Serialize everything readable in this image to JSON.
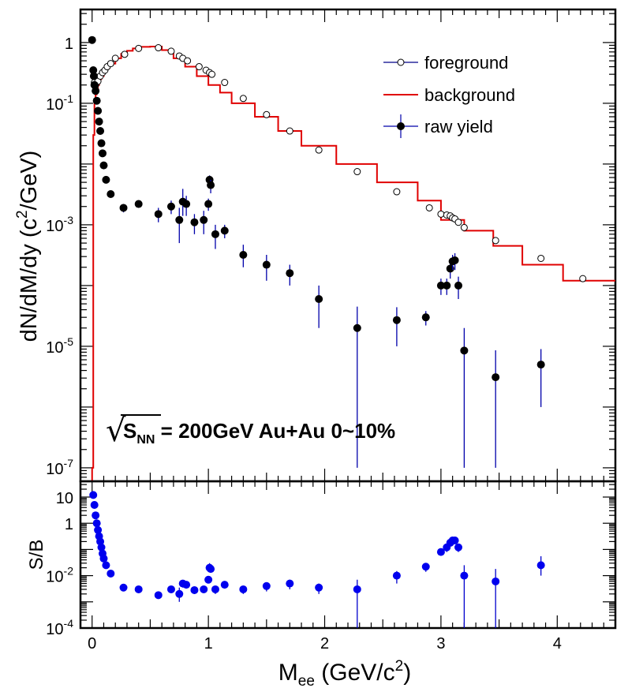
{
  "chart_data": [
    {
      "type": "scatter",
      "ylabel": "dN/dM/dy (c",
      "ylabel_sup": "2",
      "ylabel_end": "/GeV)",
      "yscale": "log",
      "ylim": [
        6e-08,
        3.5
      ],
      "xlim": [
        -0.1,
        4.5
      ],
      "yticks": [
        {
          "value": 1,
          "label": "1"
        },
        {
          "value": 0.1,
          "label": "10",
          "sup": "-1"
        },
        {
          "value": 0.001,
          "label": "10",
          "sup": "-3"
        },
        {
          "value": 1e-05,
          "label": "10",
          "sup": "-5"
        },
        {
          "value": 1e-07,
          "label": "10",
          "sup": "-7"
        }
      ],
      "legend": {
        "position": "top-right",
        "entries": [
          {
            "label": "foreground",
            "marker": "open-circle",
            "color": "#00008b"
          },
          {
            "label": "background",
            "marker": "line",
            "color": "#e00000"
          },
          {
            "label": "raw yield",
            "marker": "filled-circle-errorbar",
            "color": "#000000"
          }
        ]
      },
      "annotation": {
        "sqrt_symbol": "√",
        "s_letter": "S",
        "s_sub": "NN",
        "text": " = 200GeV Au+Au 0~10%"
      },
      "series": [
        {
          "name": "background",
          "kind": "step",
          "color": "#e00000",
          "edges": [
            0,
            0.01,
            0.02,
            0.03,
            0.04,
            0.05,
            0.06,
            0.07,
            0.08,
            0.1,
            0.12,
            0.15,
            0.2,
            0.25,
            0.3,
            0.35,
            0.4,
            0.5,
            0.6,
            0.7,
            0.8,
            0.9,
            1.0,
            1.1,
            1.2,
            1.4,
            1.6,
            1.8,
            2.1,
            2.45,
            2.8,
            3.0,
            3.2,
            3.45,
            3.7,
            4.05,
            4.5
          ],
          "values": [
            1e-07,
            0.03,
            0.1,
            0.14,
            0.17,
            0.2,
            0.23,
            0.25,
            0.28,
            0.33,
            0.38,
            0.45,
            0.55,
            0.65,
            0.73,
            0.8,
            0.85,
            0.86,
            0.75,
            0.55,
            0.4,
            0.28,
            0.2,
            0.15,
            0.1,
            0.06,
            0.035,
            0.02,
            0.01,
            0.005,
            0.0025,
            0.0012,
            0.0008,
            0.00045,
            0.00022,
            0.00012
          ]
        },
        {
          "name": "foreground",
          "kind": "open-markers",
          "color": "#000000",
          "x": [
            0.02,
            0.03,
            0.05,
            0.07,
            0.09,
            0.11,
            0.13,
            0.16,
            0.2,
            0.28,
            0.4,
            0.57,
            0.68,
            0.75,
            0.78,
            0.82,
            0.92,
            0.98,
            1.01,
            1.03,
            1.14,
            1.3,
            1.5,
            1.7,
            1.95,
            2.28,
            2.62,
            2.9,
            3.0,
            3.05,
            3.08,
            3.1,
            3.12,
            3.15,
            3.2,
            3.47,
            3.86,
            4.22
          ],
          "y": [
            0.22,
            0.2,
            0.23,
            0.28,
            0.32,
            0.35,
            0.4,
            0.45,
            0.55,
            0.64,
            0.8,
            0.82,
            0.72,
            0.6,
            0.55,
            0.5,
            0.4,
            0.35,
            0.32,
            0.3,
            0.22,
            0.12,
            0.065,
            0.035,
            0.017,
            0.0075,
            0.0035,
            0.0019,
            0.0015,
            0.00145,
            0.0014,
            0.0013,
            0.00125,
            0.0011,
            0.0009,
            0.00055,
            0.00028,
            0.00013
          ]
        },
        {
          "name": "raw yield",
          "kind": "filled-errorbar",
          "color": "#000000",
          "errcolor": "#0000aa",
          "x": [
            0.0,
            0.01,
            0.015,
            0.02,
            0.03,
            0.04,
            0.05,
            0.06,
            0.07,
            0.08,
            0.09,
            0.1,
            0.12,
            0.16,
            0.27,
            0.4,
            0.57,
            0.68,
            0.75,
            0.78,
            0.81,
            0.88,
            0.96,
            1.0,
            1.01,
            1.02,
            1.06,
            1.14,
            1.3,
            1.5,
            1.7,
            1.95,
            2.28,
            2.62,
            2.87,
            3.0,
            3.05,
            3.08,
            3.1,
            3.12,
            3.15,
            3.2,
            3.47,
            3.86
          ],
          "y": [
            1.1,
            0.35,
            0.28,
            0.2,
            0.16,
            0.11,
            0.075,
            0.05,
            0.035,
            0.022,
            0.015,
            0.0095,
            0.0055,
            0.0032,
            0.0019,
            0.0022,
            0.0015,
            0.002,
            0.0012,
            0.0024,
            0.0022,
            0.0011,
            0.0012,
            0.0022,
            0.0055,
            0.0045,
            0.0007,
            0.0008,
            0.00032,
            0.00022,
            0.00016,
            6e-05,
            2e-05,
            2.7e-05,
            3e-05,
            0.0001,
            0.0001,
            0.00019,
            0.00025,
            0.00026,
            0.0001,
            8.5e-06,
            3.1e-06,
            5e-06
          ],
          "yerr_low": [
            0.04,
            0.02,
            0.02,
            0.01,
            0.01,
            0.005,
            0.004,
            0.003,
            0.002,
            0.001,
            0.001,
            0.0006,
            0.0003,
            0.0002,
            0.0003,
            0.0003,
            0.0004,
            0.0005,
            0.0007,
            0.001,
            0.0008,
            0.0004,
            0.0005,
            0.0005,
            0.0012,
            0.0012,
            0.0003,
            0.0002,
            0.00012,
            0.0001,
            6e-05,
            4e-05,
            1.99e-05,
            1.7e-05,
            8e-06,
            3e-05,
            3e-05,
            6e-05,
            7e-05,
            8e-05,
            4e-05,
            8.4e-06,
            3e-06,
            4e-06
          ],
          "yerr_high": [
            0.04,
            0.02,
            0.02,
            0.01,
            0.01,
            0.005,
            0.004,
            0.003,
            0.002,
            0.001,
            0.001,
            0.0006,
            0.0003,
            0.0002,
            0.0003,
            0.0003,
            0.0004,
            0.0005,
            0.0007,
            0.0015,
            0.0008,
            0.0004,
            0.0005,
            0.0005,
            0.001,
            0.001,
            0.0003,
            0.0002,
            0.00015,
            0.0001,
            6e-05,
            4e-05,
            2.5e-05,
            1.7e-05,
            8e-06,
            3e-05,
            3e-05,
            6e-05,
            7e-05,
            8e-05,
            4e-05,
            1.15e-05,
            5.5e-06,
            4e-06
          ]
        }
      ]
    },
    {
      "type": "scatter",
      "ylabel": "S/B",
      "xlabel": "M",
      "xlabel_sub": "ee",
      "xlabel_unit": " (GeV/c",
      "xlabel_unit_sup": "2",
      "xlabel_end": ")",
      "yscale": "log",
      "ylim": [
        0.0001,
        40
      ],
      "xlim": [
        -0.1,
        4.5
      ],
      "yticks": [
        {
          "value": 10,
          "label": "10"
        },
        {
          "value": 1,
          "label": "1"
        },
        {
          "value": 0.01,
          "label": "10",
          "sup": "-2"
        },
        {
          "value": 0.0001,
          "label": "10",
          "sup": "-4"
        }
      ],
      "xticks": [
        {
          "value": 0,
          "label": "0"
        },
        {
          "value": 1,
          "label": "1"
        },
        {
          "value": 2,
          "label": "2"
        },
        {
          "value": 3,
          "label": "3"
        },
        {
          "value": 4,
          "label": "4"
        }
      ],
      "series": [
        {
          "name": "S/B",
          "kind": "filled-errorbar",
          "color": "#0000ee",
          "errcolor": "#0000cc",
          "x": [
            0.01,
            0.02,
            0.03,
            0.04,
            0.05,
            0.06,
            0.07,
            0.08,
            0.09,
            0.1,
            0.12,
            0.16,
            0.27,
            0.4,
            0.57,
            0.68,
            0.75,
            0.78,
            0.81,
            0.88,
            0.96,
            1.0,
            1.01,
            1.02,
            1.06,
            1.14,
            1.3,
            1.5,
            1.7,
            1.95,
            2.28,
            2.62,
            2.87,
            3.0,
            3.05,
            3.08,
            3.1,
            3.12,
            3.15,
            3.2,
            3.47,
            3.86
          ],
          "y": [
            12,
            5,
            2,
            1,
            0.55,
            0.32,
            0.2,
            0.12,
            0.07,
            0.045,
            0.025,
            0.012,
            0.0035,
            0.003,
            0.0018,
            0.003,
            0.002,
            0.005,
            0.0045,
            0.0028,
            0.003,
            0.007,
            0.02,
            0.018,
            0.003,
            0.0045,
            0.003,
            0.004,
            0.005,
            0.0035,
            0.003,
            0.01,
            0.022,
            0.08,
            0.12,
            0.18,
            0.22,
            0.22,
            0.12,
            0.01,
            0.006,
            0.025
          ],
          "yerr_low": [
            1,
            0.4,
            0.2,
            0.1,
            0.05,
            0.03,
            0.02,
            0.01,
            0.006,
            0.004,
            0.002,
            0.001,
            0.0005,
            0.0004,
            0.0003,
            0.0008,
            0.001,
            0.0015,
            0.0012,
            0.0008,
            0.0008,
            0.0015,
            0.005,
            0.005,
            0.001,
            0.001,
            0.001,
            0.0015,
            0.002,
            0.0015,
            0.00295,
            0.005,
            0.008,
            0.02,
            0.04,
            0.05,
            0.06,
            0.06,
            0.04,
            0.0099,
            0.0059,
            0.015
          ],
          "yerr_high": [
            1,
            0.4,
            0.2,
            0.1,
            0.05,
            0.03,
            0.02,
            0.01,
            0.006,
            0.004,
            0.002,
            0.001,
            0.0005,
            0.0004,
            0.0003,
            0.0008,
            0.0015,
            0.0015,
            0.0012,
            0.0008,
            0.0008,
            0.0015,
            0.01,
            0.008,
            0.001,
            0.001,
            0.001,
            0.0015,
            0.002,
            0.0015,
            0.004,
            0.005,
            0.008,
            0.02,
            0.04,
            0.05,
            0.06,
            0.06,
            0.04,
            0.015,
            0.012,
            0.03
          ]
        }
      ]
    }
  ]
}
